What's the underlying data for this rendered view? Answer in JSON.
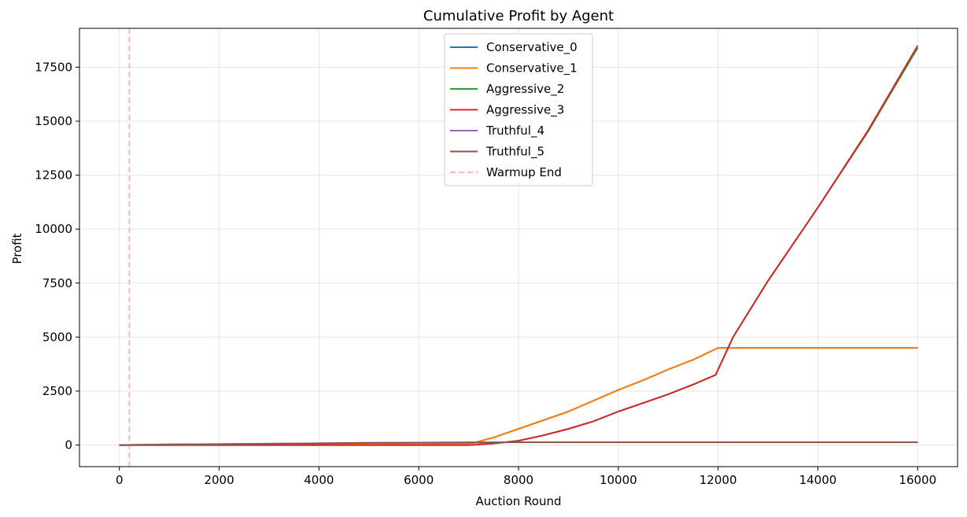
{
  "chart_data": {
    "type": "line",
    "title": "Cumulative Profit by Agent",
    "xlabel": "Auction Round",
    "ylabel": "Profit",
    "xlim": [
      -800,
      16800
    ],
    "ylim": [
      -1000,
      19300
    ],
    "xticks": [
      0,
      2000,
      4000,
      6000,
      8000,
      10000,
      12000,
      14000,
      16000
    ],
    "yticks": [
      0,
      2500,
      5000,
      7500,
      10000,
      12500,
      15000,
      17500
    ],
    "grid": true,
    "legend_position": "upper center",
    "series": [
      {
        "name": "Conservative_0",
        "color": "#1f77b4",
        "x": [
          0,
          1000,
          3000,
          5000,
          7000,
          7100,
          7500,
          8000,
          8500,
          9000,
          9500,
          10000,
          10500,
          11000,
          11500,
          12000,
          13000,
          14000,
          15000,
          16000
        ],
        "y": [
          0,
          30,
          50,
          60,
          70,
          100,
          350,
          750,
          1150,
          1550,
          2050,
          2550,
          3000,
          3500,
          3950,
          4500,
          4500,
          4500,
          4500,
          4500
        ]
      },
      {
        "name": "Conservative_1",
        "color": "#ff7f0e",
        "x": [
          0,
          1000,
          3000,
          5000,
          7000,
          7100,
          7500,
          8000,
          8500,
          9000,
          9500,
          10000,
          10500,
          11000,
          11500,
          12000,
          13000,
          14000,
          15000,
          16000
        ],
        "y": [
          0,
          30,
          50,
          60,
          70,
          100,
          350,
          750,
          1150,
          1550,
          2050,
          2550,
          3000,
          3500,
          3950,
          4500,
          4500,
          4500,
          4500,
          4500
        ]
      },
      {
        "name": "Aggressive_2",
        "color": "#2ca02c",
        "x": [
          0,
          1000,
          3000,
          5000,
          7000,
          7500,
          8000,
          8500,
          9000,
          9500,
          10000,
          10500,
          11000,
          11500,
          11950,
          12300,
          13000,
          14000,
          15000,
          16000
        ],
        "y": [
          0,
          0,
          0,
          0,
          0,
          70,
          200,
          450,
          750,
          1100,
          1550,
          1950,
          2350,
          2800,
          3250,
          5000,
          7600,
          11000,
          14500,
          18400
        ]
      },
      {
        "name": "Aggressive_3",
        "color": "#d62728",
        "x": [
          0,
          1000,
          3000,
          5000,
          7000,
          7500,
          8000,
          8500,
          9000,
          9500,
          10000,
          10500,
          11000,
          11500,
          11950,
          12300,
          13000,
          14000,
          15000,
          16000
        ],
        "y": [
          0,
          0,
          0,
          0,
          0,
          70,
          200,
          450,
          750,
          1100,
          1550,
          1950,
          2350,
          2800,
          3250,
          5000,
          7600,
          11000,
          14550,
          18500
        ]
      },
      {
        "name": "Truthful_4",
        "color": "#9467bd",
        "x": [
          0,
          1000,
          2000,
          3000,
          4000,
          5000,
          6000,
          7000,
          8000,
          10000,
          12000,
          14000,
          16000
        ],
        "y": [
          0,
          20,
          40,
          60,
          80,
          100,
          110,
          120,
          130,
          130,
          130,
          130,
          130
        ]
      },
      {
        "name": "Truthful_5",
        "color": "#8c564b",
        "x": [
          0,
          1000,
          2000,
          3000,
          4000,
          5000,
          6000,
          7000,
          8000,
          10000,
          12000,
          14000,
          16000
        ],
        "y": [
          0,
          20,
          40,
          60,
          80,
          100,
          110,
          120,
          130,
          130,
          130,
          130,
          130
        ]
      }
    ],
    "vline": {
      "name": "Warmup End",
      "x": 200,
      "color": "#ffb6c1",
      "style": "dashed"
    }
  }
}
